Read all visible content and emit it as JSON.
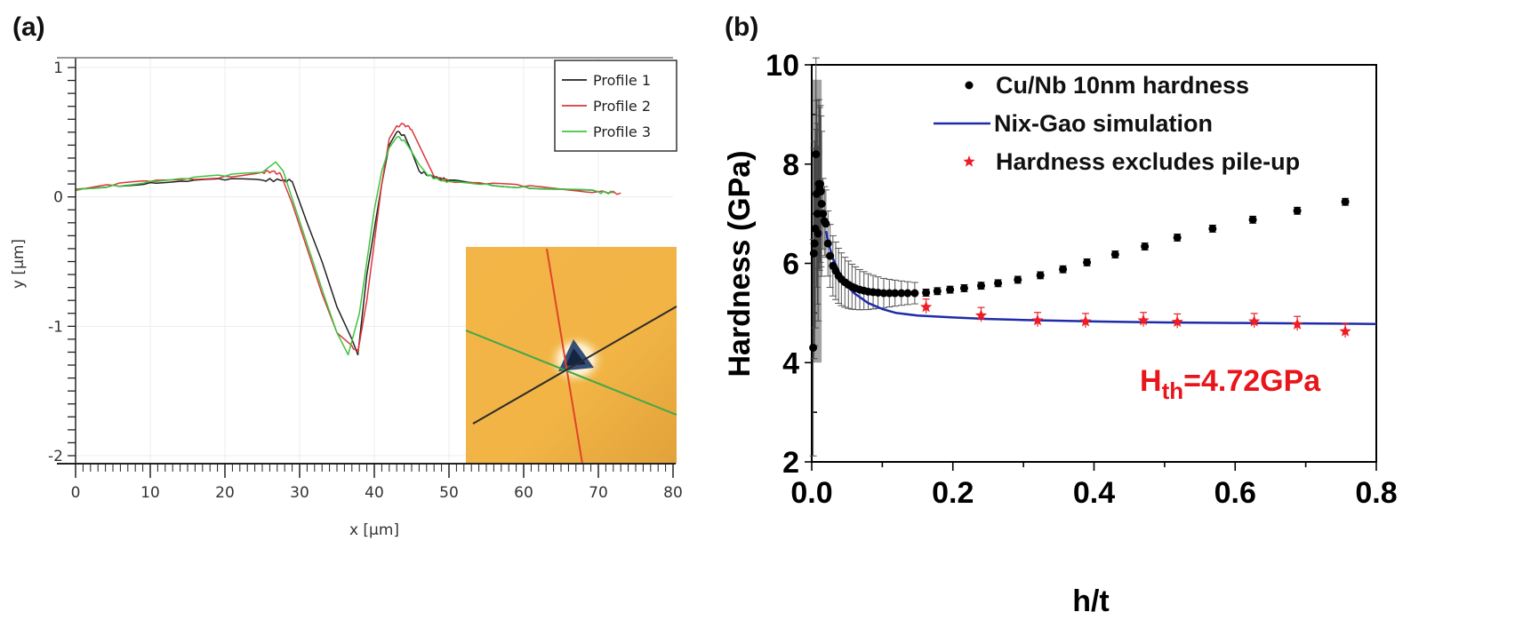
{
  "chart_data": [
    {
      "panel": "(a)",
      "type": "line",
      "title": "",
      "xlabel": "x [µm]",
      "ylabel": "y [µm]",
      "xlim": [
        0,
        80
      ],
      "ylim": [
        -2,
        1.1
      ],
      "xticks": [
        0,
        10,
        20,
        30,
        40,
        50,
        60,
        70,
        80
      ],
      "yticks": [
        1,
        0,
        -1,
        -2
      ],
      "ytick_labels": [
        "1",
        "0",
        "-1",
        "-2"
      ],
      "grid": true,
      "legend_position": "top-right",
      "series": [
        {
          "name": "Profile 1",
          "color": "#222222",
          "x": [
            0,
            5,
            10,
            15,
            20,
            25,
            28,
            29,
            31,
            33,
            35,
            37,
            37.8,
            39,
            41,
            42,
            43,
            44,
            45,
            46,
            48,
            50,
            55,
            60,
            65,
            70,
            72
          ],
          "y": [
            0.06,
            0.09,
            0.11,
            0.12,
            0.13,
            0.13,
            0.13,
            0.12,
            -0.2,
            -0.5,
            -0.85,
            -1.1,
            -1.22,
            -0.6,
            0.1,
            0.4,
            0.5,
            0.48,
            0.35,
            0.2,
            0.15,
            0.13,
            0.1,
            0.08,
            0.06,
            0.04,
            0.03
          ]
        },
        {
          "name": "Profile 2",
          "color": "#d9383a",
          "x": [
            0,
            5,
            10,
            15,
            20,
            25,
            26.5,
            27.5,
            29,
            31,
            33,
            35,
            37,
            37.8,
            39,
            41,
            42,
            43,
            44,
            45,
            46,
            47,
            48,
            50,
            55,
            60,
            65,
            70,
            73
          ],
          "y": [
            0.05,
            0.09,
            0.12,
            0.14,
            0.16,
            0.19,
            0.2,
            0.17,
            -0.05,
            -0.4,
            -0.75,
            -1.05,
            -1.15,
            -1.2,
            -0.8,
            0.1,
            0.45,
            0.55,
            0.56,
            0.52,
            0.4,
            0.28,
            0.16,
            0.12,
            0.1,
            0.08,
            0.06,
            0.04,
            0.03
          ]
        },
        {
          "name": "Profile 3",
          "color": "#3fc43f",
          "x": [
            0,
            5,
            10,
            15,
            20,
            25,
            26.8,
            27.8,
            29.5,
            31.5,
            33.5,
            35,
            36.5,
            38,
            40,
            41,
            42,
            43,
            44,
            45,
            46,
            47,
            48,
            50,
            55,
            60,
            65,
            70,
            72
          ],
          "y": [
            0.06,
            0.09,
            0.12,
            0.14,
            0.16,
            0.19,
            0.27,
            0.2,
            -0.1,
            -0.45,
            -0.8,
            -1.05,
            -1.22,
            -0.9,
            -0.1,
            0.2,
            0.38,
            0.46,
            0.44,
            0.35,
            0.25,
            0.18,
            0.14,
            0.12,
            0.1,
            0.08,
            0.06,
            0.04,
            0.03
          ]
        }
      ],
      "inset": {
        "description": "AFM height map of triangular indent with three profile lines",
        "background_color": "#f0b443",
        "lines": [
          {
            "name": "Profile 1",
            "color": "#2b2b2b"
          },
          {
            "name": "Profile 2",
            "color": "#e0442a"
          },
          {
            "name": "Profile 3",
            "color": "#3fa84a"
          }
        ]
      }
    },
    {
      "panel": "(b)",
      "type": "scatter",
      "title": "",
      "xlabel": "h/t",
      "ylabel": "Hardness (GPa)",
      "xlim": [
        0,
        0.8
      ],
      "ylim": [
        2,
        10
      ],
      "xticks": [
        0.0,
        0.2,
        0.4,
        0.6,
        0.8
      ],
      "xtick_labels": [
        "0.0",
        "0.2",
        "0.4",
        "0.6",
        "0.8"
      ],
      "yticks": [
        2,
        4,
        6,
        8,
        10
      ],
      "ytick_labels": [
        "2",
        "4",
        "6",
        "8",
        "10"
      ],
      "grid": false,
      "legend_position": "top-right",
      "series": [
        {
          "name": "Cu/Nb 10nm hardness",
          "kind": "points",
          "color": "#000000",
          "x": [
            0.002,
            0.003,
            0.004,
            0.005,
            0.006,
            0.007,
            0.008,
            0.009,
            0.01,
            0.011,
            0.012,
            0.013,
            0.014,
            0.016,
            0.018,
            0.02,
            0.023,
            0.026,
            0.03,
            0.034,
            0.038,
            0.042,
            0.047,
            0.052,
            0.057,
            0.062,
            0.068,
            0.074,
            0.08,
            0.087,
            0.094,
            0.102,
            0.11,
            0.118,
            0.127,
            0.136,
            0.146,
            0.162,
            0.178,
            0.196,
            0.216,
            0.24,
            0.264,
            0.292,
            0.324,
            0.356,
            0.39,
            0.43,
            0.472,
            0.518,
            0.568,
            0.625,
            0.688,
            0.756
          ],
          "y": [
            4.3,
            6.2,
            6.4,
            6.7,
            8.2,
            7.4,
            7.0,
            6.6,
            7.6,
            7.5,
            7.6,
            7.45,
            7.2,
            7.0,
            6.85,
            6.8,
            6.4,
            6.15,
            5.95,
            5.85,
            5.75,
            5.68,
            5.62,
            5.57,
            5.53,
            5.5,
            5.47,
            5.45,
            5.43,
            5.42,
            5.41,
            5.4,
            5.4,
            5.4,
            5.4,
            5.4,
            5.4,
            5.41,
            5.44,
            5.47,
            5.5,
            5.55,
            5.6,
            5.67,
            5.76,
            5.88,
            6.02,
            6.18,
            6.34,
            6.52,
            6.7,
            6.88,
            7.06,
            7.24
          ],
          "errors": "present (large near h/t≈0, small for h/t>0.15)"
        },
        {
          "name": "Nix-Gao simulation",
          "kind": "line",
          "color": "#1f2ba8",
          "x": [
            0.02,
            0.025,
            0.03,
            0.04,
            0.05,
            0.06,
            0.08,
            0.1,
            0.12,
            0.15,
            0.2,
            0.25,
            0.3,
            0.4,
            0.5,
            0.6,
            0.7,
            0.8
          ],
          "y": [
            6.65,
            6.35,
            6.1,
            5.78,
            5.55,
            5.4,
            5.2,
            5.08,
            5.0,
            4.95,
            4.91,
            4.88,
            4.86,
            4.83,
            4.81,
            4.8,
            4.79,
            4.78
          ]
        },
        {
          "name": "Hardness excludes pile-up",
          "kind": "stars",
          "color": "#ee1c24",
          "x": [
            0.162,
            0.24,
            0.32,
            0.388,
            0.47,
            0.518,
            0.627,
            0.688,
            0.756
          ],
          "y": [
            5.12,
            4.95,
            4.85,
            4.83,
            4.85,
            4.82,
            4.83,
            4.77,
            4.63
          ],
          "errors": "small"
        }
      ],
      "annotations": [
        {
          "text_main": "H",
          "text_sub": "th",
          "text_rest": "=4.72GPa",
          "color": "#e8161b",
          "x": 0.49,
          "y": 3.7
        }
      ]
    }
  ]
}
